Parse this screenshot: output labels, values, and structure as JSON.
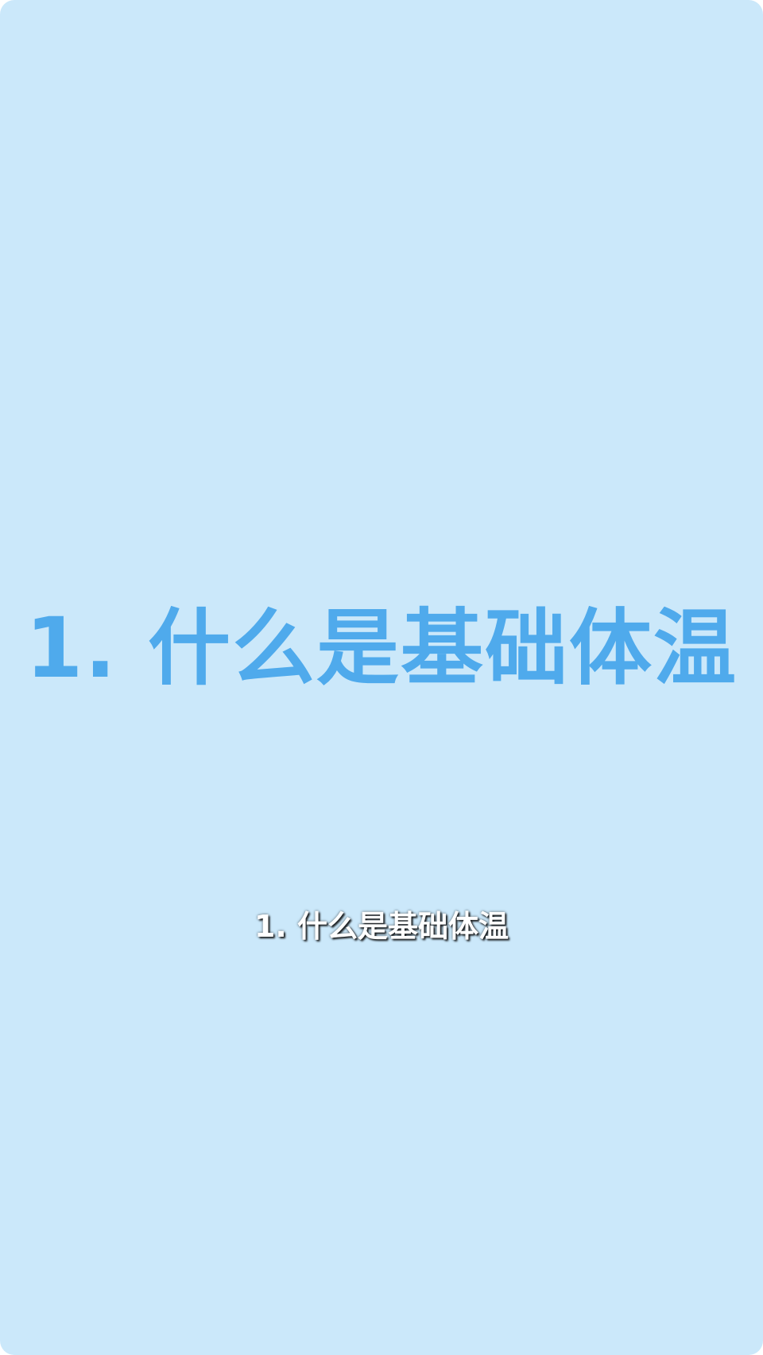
{
  "slide": {
    "headline": "1. 什么是基础体温",
    "subtitle": "1. 什么是基础体温"
  },
  "colors": {
    "background": "#cbe8fa",
    "headline": "#4faaec",
    "subtitle": "#ffffff"
  }
}
